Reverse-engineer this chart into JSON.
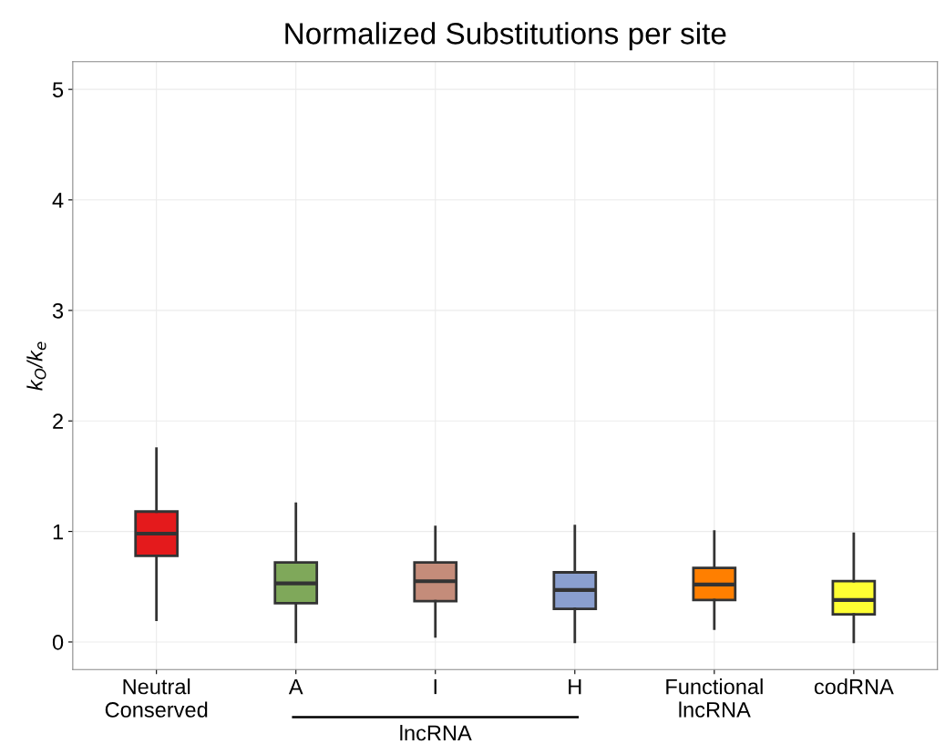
{
  "chart_data": {
    "type": "box",
    "title": "Normalized Substitutions per site",
    "ylabel": "k$_{O}$/k$_{e}$",
    "categories": [
      "Neutral\nConserved",
      "A",
      "I",
      "H",
      "Functional\nlncRNA",
      "codRNA"
    ],
    "colors": [
      "#e41a1c",
      "#7fa85a",
      "#c48c7a",
      "#8a9fcf",
      "#ff7f00",
      "#ffff33"
    ],
    "boxes": [
      {
        "low": 0.2,
        "q1": 0.78,
        "median": 0.98,
        "q3": 1.18,
        "high": 1.75
      },
      {
        "low": 0,
        "q1": 0.35,
        "median": 0.53,
        "q3": 0.72,
        "high": 1.25
      },
      {
        "low": 0.05,
        "q1": 0.37,
        "median": 0.55,
        "q3": 0.72,
        "high": 1.04
      },
      {
        "low": 0,
        "q1": 0.3,
        "median": 0.47,
        "q3": 0.63,
        "high": 1.05
      },
      {
        "low": 0.12,
        "q1": 0.38,
        "median": 0.52,
        "q3": 0.67,
        "high": 1.0
      },
      {
        "low": 0,
        "q1": 0.25,
        "median": 0.38,
        "q3": 0.55,
        "high": 0.98
      }
    ],
    "annotations": [
      "lncRNA"
    ],
    "ylim": [
      -0.25,
      5.25
    ],
    "yticks": [
      0,
      1,
      2,
      3,
      4,
      5
    ],
    "grid": true
  }
}
